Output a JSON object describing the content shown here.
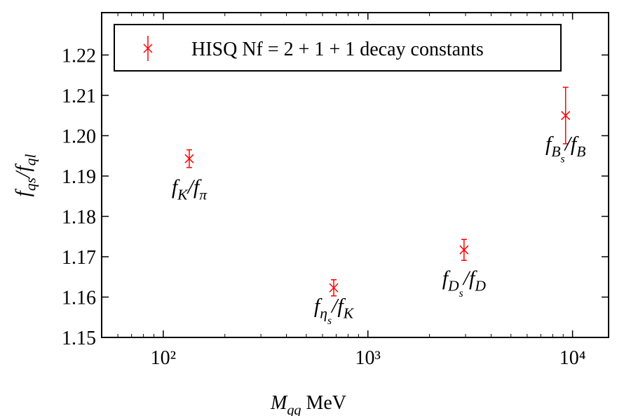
{
  "chart_data": {
    "type": "scatter",
    "xlabel": [
      "M",
      "qq",
      " MeV"
    ],
    "ylabel": [
      "f",
      "qs",
      "/f",
      "ql"
    ],
    "xscale": "log",
    "xlim": [
      50,
      15000
    ],
    "ylim": [
      1.15,
      1.2305
    ],
    "xticks": [
      {
        "value": 100,
        "label": "10²"
      },
      {
        "value": 1000,
        "label": "10³"
      },
      {
        "value": 10000,
        "label": "10⁴"
      }
    ],
    "xminorticks": [
      50,
      60,
      70,
      80,
      90,
      200,
      300,
      400,
      500,
      600,
      700,
      800,
      900,
      2000,
      3000,
      4000,
      5000,
      6000,
      7000,
      8000,
      9000
    ],
    "yticks": [
      1.15,
      1.16,
      1.17,
      1.18,
      1.19,
      {
        "value": 1.2,
        "label": "1.20"
      },
      1.21,
      1.22
    ],
    "legend": "upper left",
    "series": [
      {
        "name": "HISQ Nf = 2 + 1 + 1 decay constants",
        "color": "#ff0000",
        "x": [
          134,
          681,
          2950,
          9250
        ],
        "values": [
          1.1943,
          1.1623,
          1.1717,
          1.205
        ],
        "errors": [
          0.0022,
          0.002,
          0.0026,
          0.007
        ],
        "annotations": [
          [
            "f",
            "K",
            "/f",
            "π"
          ],
          [
            "f",
            "η",
            "s",
            "/f",
            "K"
          ],
          [
            "f",
            "D",
            "s",
            "/f",
            "D"
          ],
          [
            "f",
            "B",
            "s",
            "/f",
            "B"
          ]
        ]
      }
    ]
  }
}
